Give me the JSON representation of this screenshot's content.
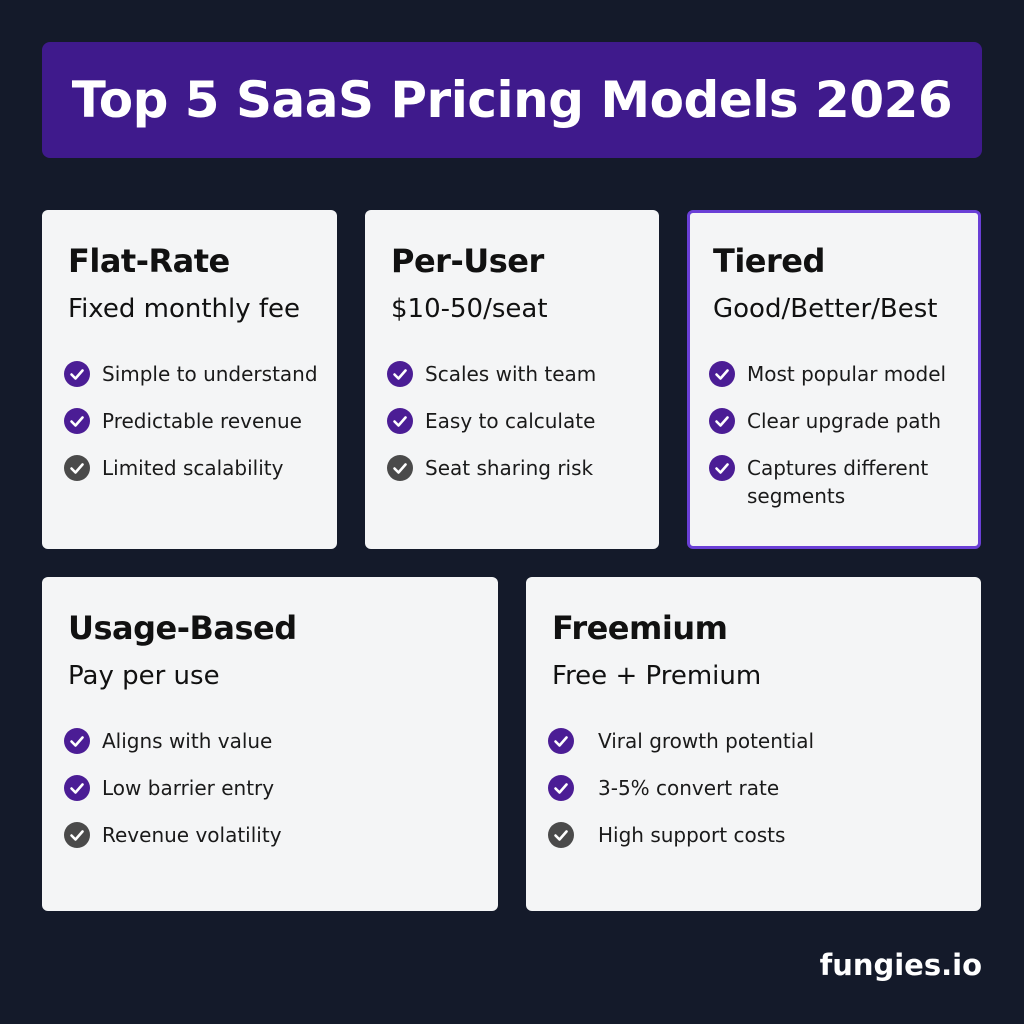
{
  "header": {
    "title": "Top 5 SaaS Pricing Models 2026"
  },
  "cards": [
    {
      "name": "Flat-Rate",
      "subtitle": "Fixed monthly fee",
      "points": [
        {
          "text": "Simple to understand",
          "color": "#4b1d95"
        },
        {
          "text": "Predictable revenue",
          "color": "#4b1d95"
        },
        {
          "text": "Limited scalability",
          "color": "#4a4a4a"
        }
      ]
    },
    {
      "name": "Per-User",
      "subtitle": "$10-50/seat",
      "points": [
        {
          "text": "Scales with team",
          "color": "#4b1d95"
        },
        {
          "text": "Easy to calculate",
          "color": "#4b1d95"
        },
        {
          "text": "Seat sharing risk",
          "color": "#4a4a4a"
        }
      ]
    },
    {
      "name": "Tiered",
      "subtitle": "Good/Better/Best",
      "highlight": true,
      "points": [
        {
          "text": "Most popular model",
          "color": "#4b1d95"
        },
        {
          "text": "Clear upgrade path",
          "color": "#4b1d95"
        },
        {
          "text": "Captures different segments",
          "color": "#4b1d95"
        }
      ]
    },
    {
      "name": "Usage-Based",
      "subtitle": "Pay per use",
      "points": [
        {
          "text": "Aligns with value",
          "color": "#4b1d95"
        },
        {
          "text": "Low barrier entry",
          "color": "#4b1d95"
        },
        {
          "text": "Revenue volatility",
          "color": "#4a4a4a"
        }
      ]
    },
    {
      "name": "Freemium",
      "subtitle": "Free + Premium",
      "points": [
        {
          "text": "Viral growth potential",
          "color": "#4b1d95"
        },
        {
          "text": "3-5% convert rate",
          "color": "#4b1d95"
        },
        {
          "text": "High support costs",
          "color": "#4a4a4a"
        }
      ]
    }
  ],
  "footer": {
    "brand": "fungies.io"
  }
}
